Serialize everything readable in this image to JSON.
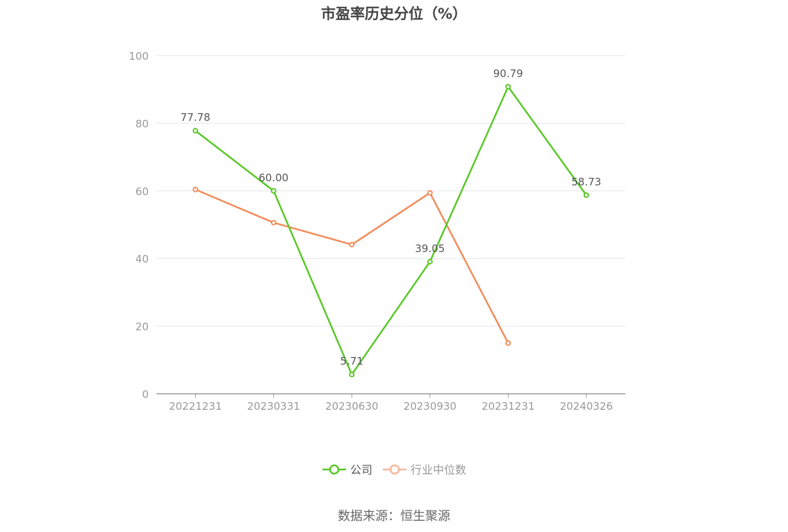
{
  "chart_data": {
    "type": "line",
    "title": "市盈率历史分位（%）",
    "categories": [
      "20221231",
      "20230331",
      "20230630",
      "20230930",
      "20231231",
      "20240326"
    ],
    "ylim": [
      0,
      100
    ],
    "yticks": [
      0,
      20,
      40,
      60,
      80,
      100
    ],
    "grid": true,
    "legend_position": "bottom",
    "series": [
      {
        "name": "公司",
        "color": "#5ac828",
        "values": [
          77.78,
          60.0,
          5.71,
          39.05,
          90.79,
          58.73
        ],
        "labels": [
          "77.78",
          "60.00",
          "5.71",
          "39.05",
          "90.79",
          "58.73"
        ]
      },
      {
        "name": "行业中位数",
        "color": "#f28c5a",
        "legend_color": "#f7b79a",
        "values": [
          60.4,
          50.6,
          44.1,
          59.4,
          15.0,
          null
        ]
      }
    ]
  },
  "footer": {
    "source": "数据来源：恒生聚源"
  }
}
